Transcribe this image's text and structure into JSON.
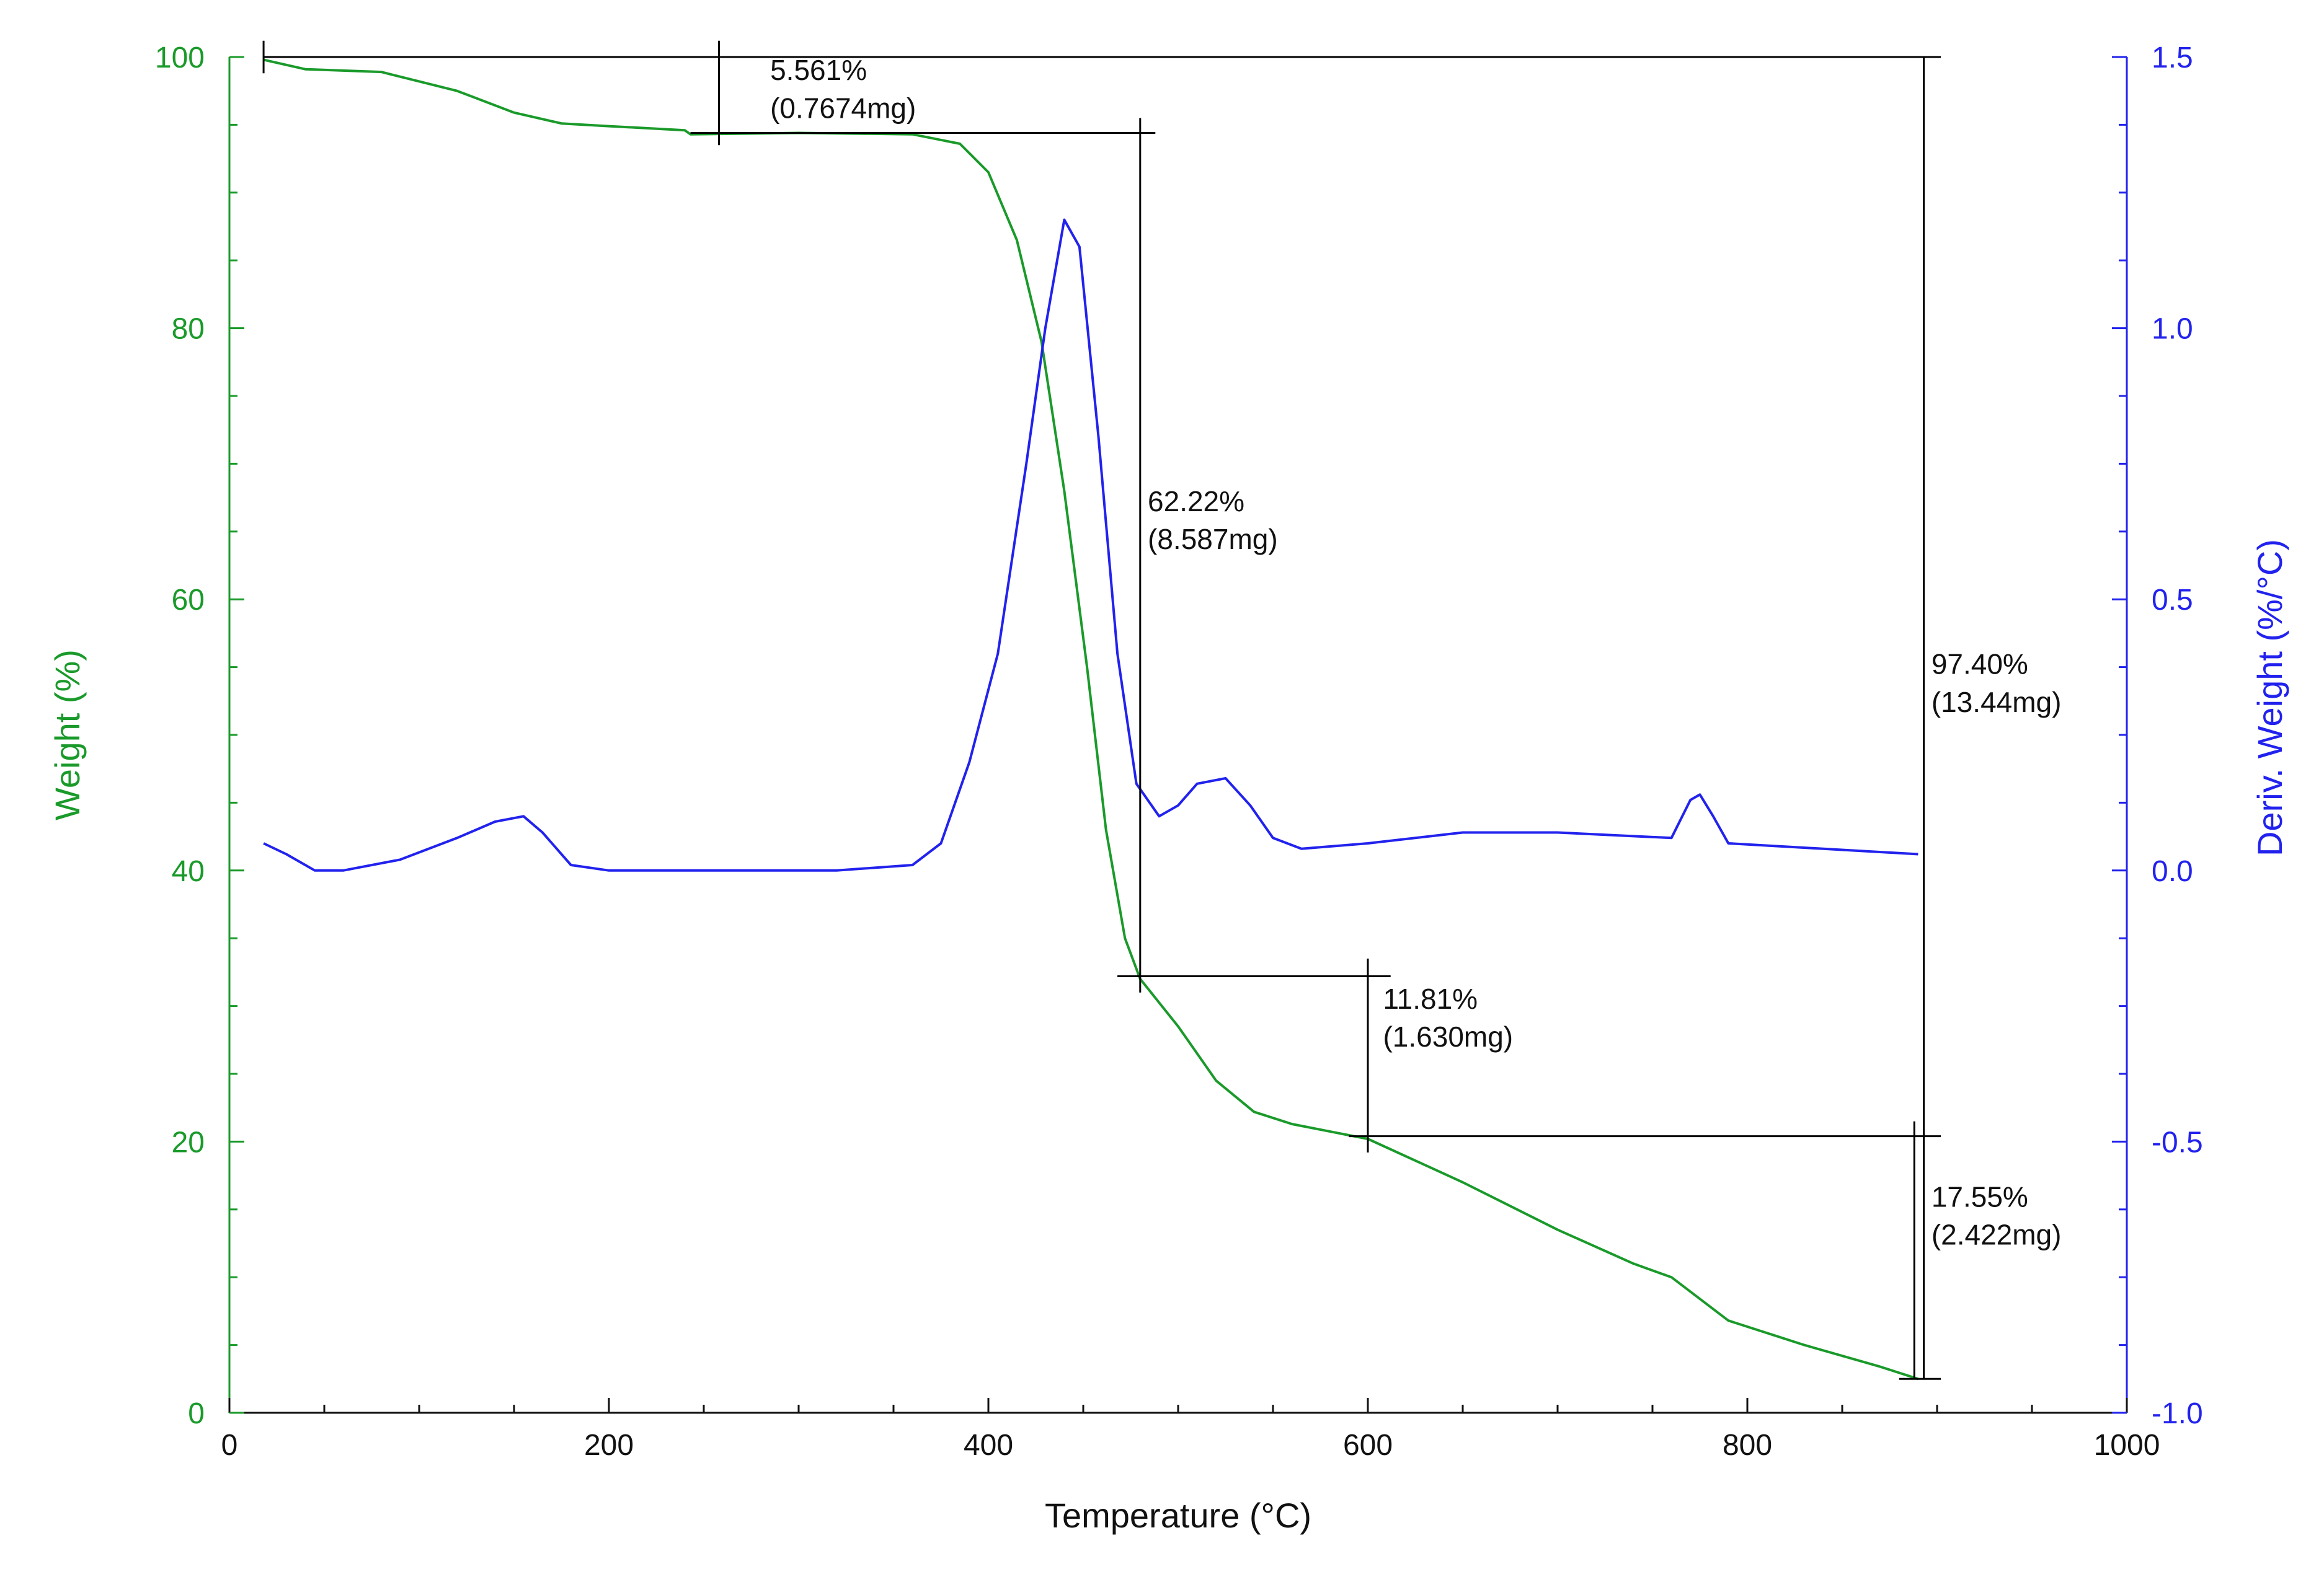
{
  "chart_data": {
    "type": "line",
    "xlabel": "Temperature (°C)",
    "ylabel_left": "Weight (%)",
    "ylabel_right": "Deriv. Weight (%/°C)",
    "xlim": [
      0,
      1000
    ],
    "ylim_left": [
      0,
      100
    ],
    "ylim_right": [
      -1.0,
      1.5
    ],
    "x_ticks": [
      "0",
      "200",
      "400",
      "600",
      "800",
      "1000"
    ],
    "y_left_ticks": [
      "0",
      "20",
      "40",
      "60",
      "80",
      "100"
    ],
    "y_right_ticks": [
      "-1.0",
      "-0.5",
      "0.0",
      "0.5",
      "1.0",
      "1.5"
    ],
    "colors": {
      "weight": "#1a9a2a",
      "deriv": "#2222ee",
      "annotation": "#000000"
    },
    "series": [
      {
        "name": "Weight (%)",
        "axis": "left",
        "x": [
          18,
          40,
          80,
          120,
          150,
          175,
          200,
          240,
          243,
          300,
          360,
          385,
          400,
          415,
          428,
          440,
          452,
          462,
          472,
          480,
          500,
          520,
          540,
          560,
          600,
          650,
          700,
          740,
          760,
          790,
          830,
          870,
          890
        ],
        "y": [
          99.8,
          99.1,
          98.9,
          97.5,
          95.9,
          95.1,
          94.9,
          94.6,
          94.3,
          94.4,
          94.3,
          93.6,
          91.5,
          86.5,
          79,
          68,
          55,
          43,
          35,
          32,
          28.5,
          24.5,
          22.2,
          21.3,
          20.2,
          17,
          13.5,
          11,
          10,
          6.8,
          5,
          3.4,
          2.5
        ]
      },
      {
        "name": "Deriv. Weight (%/°C)",
        "axis": "right",
        "x": [
          18,
          30,
          45,
          60,
          90,
          120,
          140,
          155,
          165,
          180,
          200,
          250,
          300,
          320,
          360,
          375,
          390,
          405,
          420,
          430,
          440,
          448,
          458,
          468,
          478,
          490,
          500,
          510,
          525,
          538,
          550,
          565,
          600,
          650,
          700,
          760,
          770,
          775,
          782,
          790,
          840,
          890
        ],
        "y": [
          0.05,
          0.03,
          0.0,
          0.0,
          0.02,
          0.06,
          0.09,
          0.1,
          0.07,
          0.01,
          0.0,
          0.0,
          0.0,
          0.0,
          0.01,
          0.05,
          0.2,
          0.4,
          0.75,
          1.0,
          1.2,
          1.15,
          0.8,
          0.4,
          0.16,
          0.1,
          0.12,
          0.16,
          0.17,
          0.12,
          0.06,
          0.04,
          0.05,
          0.07,
          0.07,
          0.06,
          0.13,
          0.14,
          0.1,
          0.05,
          0.04,
          0.03
        ]
      }
    ],
    "annotations": [
      {
        "label": "5.561%",
        "sub": "(0.7674mg)"
      },
      {
        "label": "62.22%",
        "sub": "(8.587mg)"
      },
      {
        "label": "11.81%",
        "sub": "(1.630mg)"
      },
      {
        "label": "17.55%",
        "sub": "(2.422mg)"
      },
      {
        "label": "97.40%",
        "sub": "(13.44mg)"
      }
    ],
    "grid": false,
    "legend": "none"
  }
}
